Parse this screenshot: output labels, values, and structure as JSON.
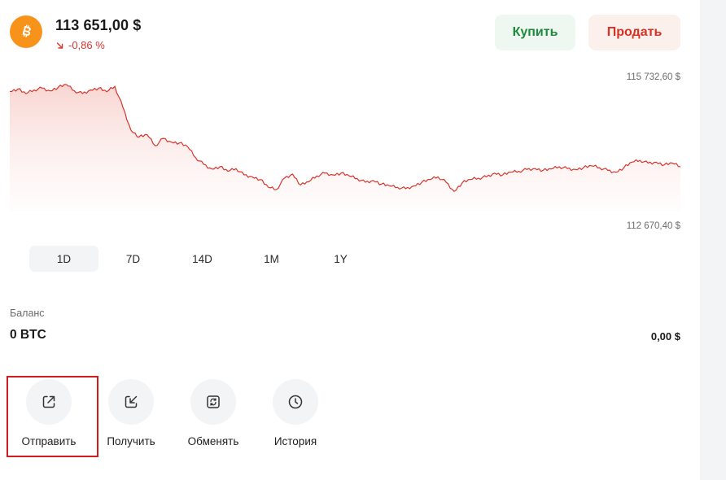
{
  "asset": {
    "price": "113 651,00 $",
    "change": "-0,86 %",
    "icon": "bitcoin-icon",
    "brand_color": "#f7931a"
  },
  "buttons": {
    "buy": "Купить",
    "sell": "Продать"
  },
  "chart": {
    "max_label": "115 732,60 $",
    "min_label": "112 670,40 $",
    "line_color": "#d9342b",
    "fill_color": "#fbe3e1"
  },
  "chart_data": {
    "type": "area",
    "ylim": [
      112670.4,
      115732.6
    ],
    "values": [
      115550,
      115600,
      115500,
      115580,
      115620,
      115560,
      115640,
      115700,
      115560,
      115500,
      115580,
      115620,
      115540,
      115660,
      115200,
      114700,
      114550,
      114600,
      114360,
      114520,
      114440,
      114420,
      114340,
      114100,
      113950,
      113850,
      113900,
      113800,
      113860,
      113720,
      113680,
      113620,
      113450,
      113400,
      113650,
      113740,
      113500,
      113570,
      113700,
      113760,
      113720,
      113760,
      113700,
      113640,
      113560,
      113600,
      113520,
      113480,
      113450,
      113420,
      113480,
      113560,
      113620,
      113680,
      113560,
      113360,
      113550,
      113620,
      113650,
      113680,
      113760,
      113720,
      113780,
      113800,
      113840,
      113860,
      113820,
      113850,
      113900,
      113860,
      113840,
      113880,
      113920,
      113880,
      113820,
      113780,
      113880,
      114000,
      114040,
      113980,
      114000,
      113940,
      113980,
      113900
    ]
  },
  "periods": [
    {
      "label": "1D",
      "active": true
    },
    {
      "label": "7D",
      "active": false
    },
    {
      "label": "14D",
      "active": false
    },
    {
      "label": "1M",
      "active": false
    },
    {
      "label": "1Y",
      "active": false
    }
  ],
  "balance": {
    "label": "Баланс",
    "amount": "0 BTC",
    "fiat": "0,00 $"
  },
  "actions": [
    {
      "label": "Отправить",
      "icon": "send-icon"
    },
    {
      "label": "Получить",
      "icon": "receive-icon"
    },
    {
      "label": "Обменять",
      "icon": "exchange-icon"
    },
    {
      "label": "История",
      "icon": "clock-icon"
    }
  ]
}
